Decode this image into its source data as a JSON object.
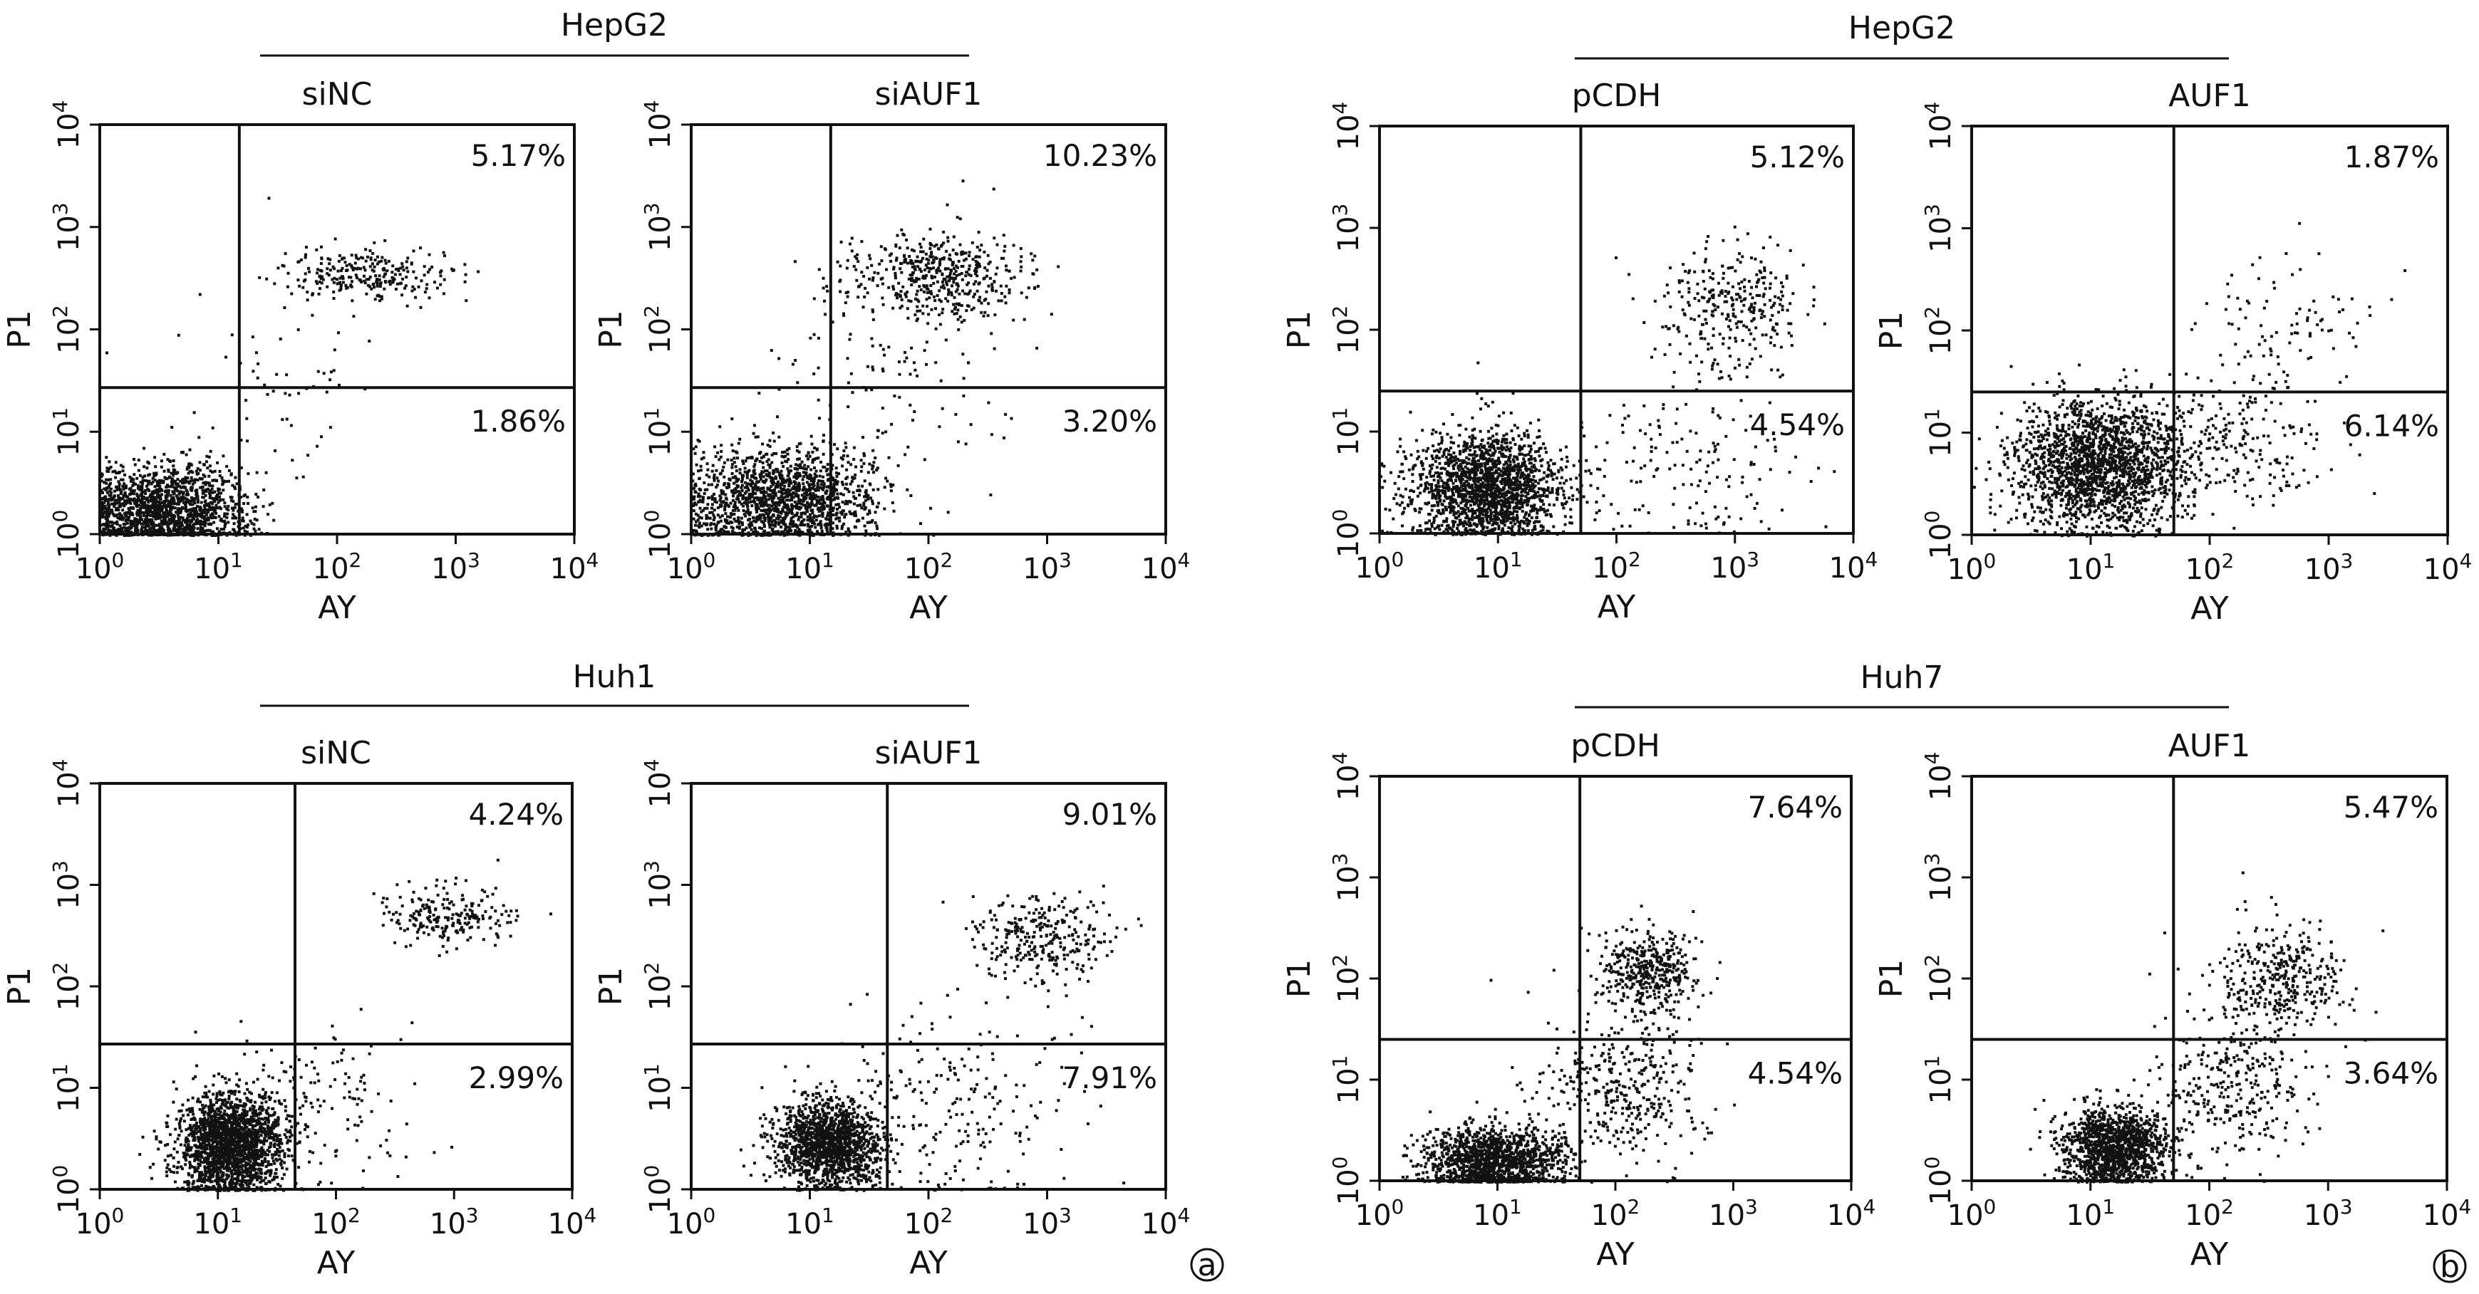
{
  "chart_data": [
    {
      "type": "scatter",
      "group": "HepG2",
      "title": "siNC",
      "xlabel": "AY",
      "ylabel": "P1",
      "x_scale": "log10",
      "y_scale": "log10",
      "xlim": [
        1,
        10000
      ],
      "ylim": [
        1,
        10000
      ],
      "x_ticks": [
        {
          "base": "10",
          "exp": "0"
        },
        {
          "base": "10",
          "exp": "1"
        },
        {
          "base": "10",
          "exp": "2"
        },
        {
          "base": "10",
          "exp": "3"
        },
        {
          "base": "10",
          "exp": "4"
        }
      ],
      "y_ticks": [
        {
          "base": "10",
          "exp": "0"
        },
        {
          "base": "10",
          "exp": "1"
        },
        {
          "base": "10",
          "exp": "2"
        },
        {
          "base": "10",
          "exp": "3"
        },
        {
          "base": "10",
          "exp": "4"
        }
      ],
      "gate": {
        "x": 15,
        "y": 27
      },
      "quadrant_labels": {
        "upper_right": "5.17%",
        "lower_right": "1.86%"
      },
      "clusters": [
        {
          "n": 1600,
          "x_log_mean": 0.55,
          "y_log_mean": 0.25,
          "x_log_sd": 0.35,
          "y_log_sd": 0.22
        },
        {
          "n": 260,
          "x_log_mean": 2.2,
          "y_log_mean": 2.55,
          "x_log_sd": 0.35,
          "y_log_sd": 0.12
        },
        {
          "n": 60,
          "x_log_mean": 1.55,
          "y_log_mean": 1.5,
          "x_log_sd": 0.45,
          "y_log_sd": 0.55
        }
      ]
    },
    {
      "type": "scatter",
      "group": "HepG2",
      "title": "siAUF1",
      "xlabel": "AY",
      "ylabel": "P1",
      "x_scale": "log10",
      "y_scale": "log10",
      "xlim": [
        1,
        10000
      ],
      "ylim": [
        1,
        10000
      ],
      "x_ticks": [
        {
          "base": "10",
          "exp": "0"
        },
        {
          "base": "10",
          "exp": "1"
        },
        {
          "base": "10",
          "exp": "2"
        },
        {
          "base": "10",
          "exp": "3"
        },
        {
          "base": "10",
          "exp": "4"
        }
      ],
      "y_ticks": [
        {
          "base": "10",
          "exp": "0"
        },
        {
          "base": "10",
          "exp": "1"
        },
        {
          "base": "10",
          "exp": "2"
        },
        {
          "base": "10",
          "exp": "3"
        },
        {
          "base": "10",
          "exp": "4"
        }
      ],
      "gate": {
        "x": 15,
        "y": 27
      },
      "quadrant_labels": {
        "upper_right": "10.23%",
        "lower_right": "3.20%"
      },
      "clusters": [
        {
          "n": 1500,
          "x_log_mean": 0.75,
          "y_log_mean": 0.35,
          "x_log_sd": 0.4,
          "y_log_sd": 0.25
        },
        {
          "n": 480,
          "x_log_mean": 2.05,
          "y_log_mean": 2.55,
          "x_log_sd": 0.38,
          "y_log_sd": 0.2
        },
        {
          "n": 120,
          "x_log_mean": 1.6,
          "y_log_mean": 1.6,
          "x_log_sd": 0.5,
          "y_log_sd": 0.6
        }
      ]
    },
    {
      "type": "scatter",
      "group": "HepG2",
      "title": "pCDH",
      "xlabel": "AY",
      "ylabel": "P1",
      "x_scale": "log10",
      "y_scale": "log10",
      "xlim": [
        1,
        10000
      ],
      "ylim": [
        1,
        10000
      ],
      "x_ticks": [
        {
          "base": "10",
          "exp": "0"
        },
        {
          "base": "10",
          "exp": "1"
        },
        {
          "base": "10",
          "exp": "2"
        },
        {
          "base": "10",
          "exp": "3"
        },
        {
          "base": "10",
          "exp": "4"
        }
      ],
      "y_ticks": [
        {
          "base": "10",
          "exp": "0"
        },
        {
          "base": "10",
          "exp": "1"
        },
        {
          "base": "10",
          "exp": "2"
        },
        {
          "base": "10",
          "exp": "3"
        },
        {
          "base": "10",
          "exp": "4"
        }
      ],
      "gate": {
        "x": 50,
        "y": 25
      },
      "quadrant_labels": {
        "upper_right": "5.12%",
        "lower_right": "4.54%"
      },
      "clusters": [
        {
          "n": 1800,
          "x_log_mean": 0.9,
          "y_log_mean": 0.45,
          "x_log_sd": 0.33,
          "y_log_sd": 0.28
        },
        {
          "n": 300,
          "x_log_mean": 2.95,
          "y_log_mean": 2.25,
          "x_log_sd": 0.3,
          "y_log_sd": 0.3
        },
        {
          "n": 160,
          "x_log_mean": 2.6,
          "y_log_mean": 0.7,
          "x_log_sd": 0.45,
          "y_log_sd": 0.45
        }
      ]
    },
    {
      "type": "scatter",
      "group": "HepG2",
      "title": "AUF1",
      "xlabel": "AY",
      "ylabel": "P1",
      "x_scale": "log10",
      "y_scale": "log10",
      "xlim": [
        1,
        10000
      ],
      "ylim": [
        1,
        10000
      ],
      "x_ticks": [
        {
          "base": "10",
          "exp": "0"
        },
        {
          "base": "10",
          "exp": "1"
        },
        {
          "base": "10",
          "exp": "2"
        },
        {
          "base": "10",
          "exp": "3"
        },
        {
          "base": "10",
          "exp": "4"
        }
      ],
      "y_ticks": [
        {
          "base": "10",
          "exp": "0"
        },
        {
          "base": "10",
          "exp": "1"
        },
        {
          "base": "10",
          "exp": "2"
        },
        {
          "base": "10",
          "exp": "3"
        },
        {
          "base": "10",
          "exp": "4"
        }
      ],
      "gate": {
        "x": 50,
        "y": 25
      },
      "quadrant_labels": {
        "upper_right": "1.87%",
        "lower_right": "6.14%"
      },
      "clusters": [
        {
          "n": 1900,
          "x_log_mean": 1.05,
          "y_log_mean": 0.7,
          "x_log_sd": 0.35,
          "y_log_sd": 0.32
        },
        {
          "n": 90,
          "x_log_mean": 2.6,
          "y_log_mean": 2.05,
          "x_log_sd": 0.4,
          "y_log_sd": 0.35
        },
        {
          "n": 260,
          "x_log_mean": 2.1,
          "y_log_mean": 0.9,
          "x_log_sd": 0.45,
          "y_log_sd": 0.35
        }
      ]
    },
    {
      "type": "scatter",
      "group": "Huh1",
      "title": "siNC",
      "xlabel": "AY",
      "ylabel": "P1",
      "x_scale": "log10",
      "y_scale": "log10",
      "xlim": [
        1,
        10000
      ],
      "ylim": [
        1,
        10000
      ],
      "x_ticks": [
        {
          "base": "10",
          "exp": "0"
        },
        {
          "base": "10",
          "exp": "1"
        },
        {
          "base": "10",
          "exp": "2"
        },
        {
          "base": "10",
          "exp": "3"
        },
        {
          "base": "10",
          "exp": "4"
        }
      ],
      "y_ticks": [
        {
          "base": "10",
          "exp": "0"
        },
        {
          "base": "10",
          "exp": "1"
        },
        {
          "base": "10",
          "exp": "2"
        },
        {
          "base": "10",
          "exp": "3"
        },
        {
          "base": "10",
          "exp": "4"
        }
      ],
      "gate": {
        "x": 45,
        "y": 27
      },
      "quadrant_labels": {
        "upper_right": "4.24%",
        "lower_right": "2.99%"
      },
      "clusters": [
        {
          "n": 2000,
          "x_log_mean": 1.1,
          "y_log_mean": 0.45,
          "x_log_sd": 0.22,
          "y_log_sd": 0.25
        },
        {
          "n": 220,
          "x_log_mean": 2.95,
          "y_log_mean": 2.7,
          "x_log_sd": 0.28,
          "y_log_sd": 0.15
        },
        {
          "n": 140,
          "x_log_mean": 1.9,
          "y_log_mean": 0.9,
          "x_log_sd": 0.4,
          "y_log_sd": 0.4
        }
      ]
    },
    {
      "type": "scatter",
      "group": "Huh1",
      "title": "siAUF1",
      "xlabel": "AY",
      "ylabel": "P1",
      "x_scale": "log10",
      "y_scale": "log10",
      "xlim": [
        1,
        10000
      ],
      "ylim": [
        1,
        10000
      ],
      "x_ticks": [
        {
          "base": "10",
          "exp": "0"
        },
        {
          "base": "10",
          "exp": "1"
        },
        {
          "base": "10",
          "exp": "2"
        },
        {
          "base": "10",
          "exp": "3"
        },
        {
          "base": "10",
          "exp": "4"
        }
      ],
      "y_ticks": [
        {
          "base": "10",
          "exp": "0"
        },
        {
          "base": "10",
          "exp": "1"
        },
        {
          "base": "10",
          "exp": "2"
        },
        {
          "base": "10",
          "exp": "3"
        },
        {
          "base": "10",
          "exp": "4"
        }
      ],
      "gate": {
        "x": 45,
        "y": 27
      },
      "quadrant_labels": {
        "upper_right": "9.01%",
        "lower_right": "7.91%"
      },
      "clusters": [
        {
          "n": 1500,
          "x_log_mean": 1.15,
          "y_log_mean": 0.45,
          "x_log_sd": 0.22,
          "y_log_sd": 0.22
        },
        {
          "n": 300,
          "x_log_mean": 2.95,
          "y_log_mean": 2.5,
          "x_log_sd": 0.3,
          "y_log_sd": 0.2
        },
        {
          "n": 220,
          "x_log_mean": 2.2,
          "y_log_mean": 0.8,
          "x_log_sd": 0.5,
          "y_log_sd": 0.45
        }
      ]
    },
    {
      "type": "scatter",
      "group": "Huh7",
      "title": "pCDH",
      "xlabel": "AY",
      "ylabel": "P1",
      "x_scale": "log10",
      "y_scale": "log10",
      "xlim": [
        1,
        10000
      ],
      "ylim": [
        1,
        10000
      ],
      "x_ticks": [
        {
          "base": "10",
          "exp": "0"
        },
        {
          "base": "10",
          "exp": "1"
        },
        {
          "base": "10",
          "exp": "2"
        },
        {
          "base": "10",
          "exp": "3"
        },
        {
          "base": "10",
          "exp": "4"
        }
      ],
      "y_ticks": [
        {
          "base": "10",
          "exp": "0"
        },
        {
          "base": "10",
          "exp": "1"
        },
        {
          "base": "10",
          "exp": "2"
        },
        {
          "base": "10",
          "exp": "3"
        },
        {
          "base": "10",
          "exp": "4"
        }
      ],
      "gate": {
        "x": 50,
        "y": 25
      },
      "quadrant_labels": {
        "upper_right": "7.64%",
        "lower_right": "4.54%"
      },
      "clusters": [
        {
          "n": 1400,
          "x_log_mean": 0.95,
          "y_log_mean": 0.2,
          "x_log_sd": 0.3,
          "y_log_sd": 0.17
        },
        {
          "n": 420,
          "x_log_mean": 2.25,
          "y_log_mean": 2.1,
          "x_log_sd": 0.22,
          "y_log_sd": 0.2
        },
        {
          "n": 380,
          "x_log_mean": 2.05,
          "y_log_mean": 0.9,
          "x_log_sd": 0.35,
          "y_log_sd": 0.35
        }
      ]
    },
    {
      "type": "scatter",
      "group": "Huh7",
      "title": "AUF1",
      "xlabel": "AY",
      "ylabel": "P1",
      "x_scale": "log10",
      "y_scale": "log10",
      "xlim": [
        1,
        10000
      ],
      "ylim": [
        1,
        10000
      ],
      "x_ticks": [
        {
          "base": "10",
          "exp": "0"
        },
        {
          "base": "10",
          "exp": "1"
        },
        {
          "base": "10",
          "exp": "2"
        },
        {
          "base": "10",
          "exp": "3"
        },
        {
          "base": "10",
          "exp": "4"
        }
      ],
      "y_ticks": [
        {
          "base": "10",
          "exp": "0"
        },
        {
          "base": "10",
          "exp": "1"
        },
        {
          "base": "10",
          "exp": "2"
        },
        {
          "base": "10",
          "exp": "3"
        },
        {
          "base": "10",
          "exp": "4"
        }
      ],
      "gate": {
        "x": 50,
        "y": 25
      },
      "quadrant_labels": {
        "upper_right": "5.47%",
        "lower_right": "3.64%"
      },
      "clusters": [
        {
          "n": 1300,
          "x_log_mean": 1.2,
          "y_log_mean": 0.35,
          "x_log_sd": 0.22,
          "y_log_sd": 0.2
        },
        {
          "n": 380,
          "x_log_mean": 2.55,
          "y_log_mean": 2.0,
          "x_log_sd": 0.3,
          "y_log_sd": 0.3
        },
        {
          "n": 300,
          "x_log_mean": 2.2,
          "y_log_mean": 0.95,
          "x_log_sd": 0.35,
          "y_log_sd": 0.35
        }
      ]
    }
  ],
  "group_titles": {
    "top_left": "HepG2",
    "top_right": "HepG2",
    "bottom_left": "Huh1",
    "bottom_right": "Huh7"
  },
  "panel_marks": {
    "left": "a",
    "right": "b"
  },
  "colors": {
    "ink": "#111111",
    "background": "#ffffff"
  }
}
